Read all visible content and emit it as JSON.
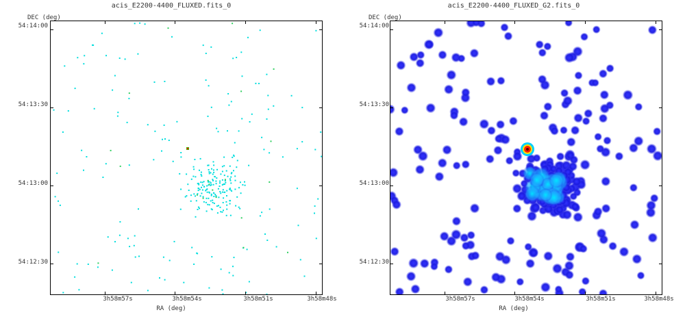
{
  "panels": [
    {
      "title": "acis_E2200-4400_FLUXED.fits_0",
      "ylabel": "DEC (deg)",
      "xlabel": "RA (deg)",
      "yticks": [
        "54:14:00",
        "54:13:30",
        "54:13:00",
        "54:12:30"
      ],
      "xticks": [
        "3h58m57s",
        "3h58m54s",
        "3h58m51s",
        "3h58m48s"
      ],
      "colormap": "cyan-green-yellow-red",
      "point_color": "#00dede"
    },
    {
      "title": "acis_E2200-4400_FLUXED_G2.fits_0",
      "ylabel": "DEC (deg)",
      "xlabel": "RA (deg)",
      "yticks": [
        "54:14:00",
        "54:13:30",
        "54:13:00",
        "54:12:30"
      ],
      "xticks": [
        "3h58m57s",
        "3h58m54s",
        "3h58m51s",
        "3h58m48s"
      ],
      "colormap": "blue-cyan-yellow-red",
      "blob_color": "#1a1ae0"
    }
  ]
}
